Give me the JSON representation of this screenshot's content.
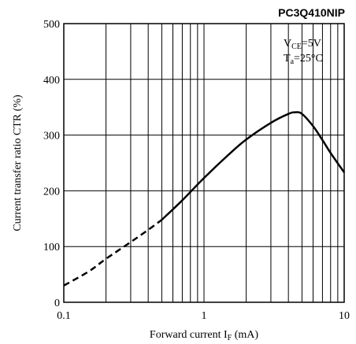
{
  "chart_data": {
    "type": "line",
    "title": "PC3Q410NIP",
    "xlabel": {
      "text": "Forward current I",
      "sub": "F",
      "unit": " (mA)"
    },
    "ylabel": "Current transfer ratio CTR (%)",
    "xscale": "log",
    "xlim": [
      0.1,
      10
    ],
    "ylim": [
      0,
      500
    ],
    "xticks": [
      {
        "value": 0.1,
        "label": "0.1"
      },
      {
        "value": 1,
        "label": "1"
      },
      {
        "value": 10,
        "label": "10"
      }
    ],
    "yticks": [
      {
        "value": 0,
        "label": "0"
      },
      {
        "value": 100,
        "label": "100"
      },
      {
        "value": 200,
        "label": "200"
      },
      {
        "value": 300,
        "label": "300"
      },
      {
        "value": 400,
        "label": "400"
      },
      {
        "value": 500,
        "label": "500"
      }
    ],
    "grid": true,
    "conditions": [
      {
        "main": "V",
        "sub": "CE",
        "rest": "=5V"
      },
      {
        "main": "T",
        "sub": "a",
        "rest": "=25°C"
      }
    ],
    "series": [
      {
        "style": "dashed",
        "x": [
          0.1,
          0.15,
          0.2,
          0.3,
          0.4,
          0.5
        ],
        "y": [
          30,
          55,
          78,
          108,
          130,
          148
        ]
      },
      {
        "style": "solid",
        "x": [
          0.5,
          0.7,
          1.0,
          1.5,
          2.0,
          3.0,
          4.0,
          4.5,
          5.0,
          6.0,
          7.0,
          8.0,
          10.0
        ],
        "y": [
          148,
          183,
          223,
          265,
          292,
          322,
          338,
          341,
          338,
          316,
          291,
          268,
          233
        ]
      }
    ]
  }
}
